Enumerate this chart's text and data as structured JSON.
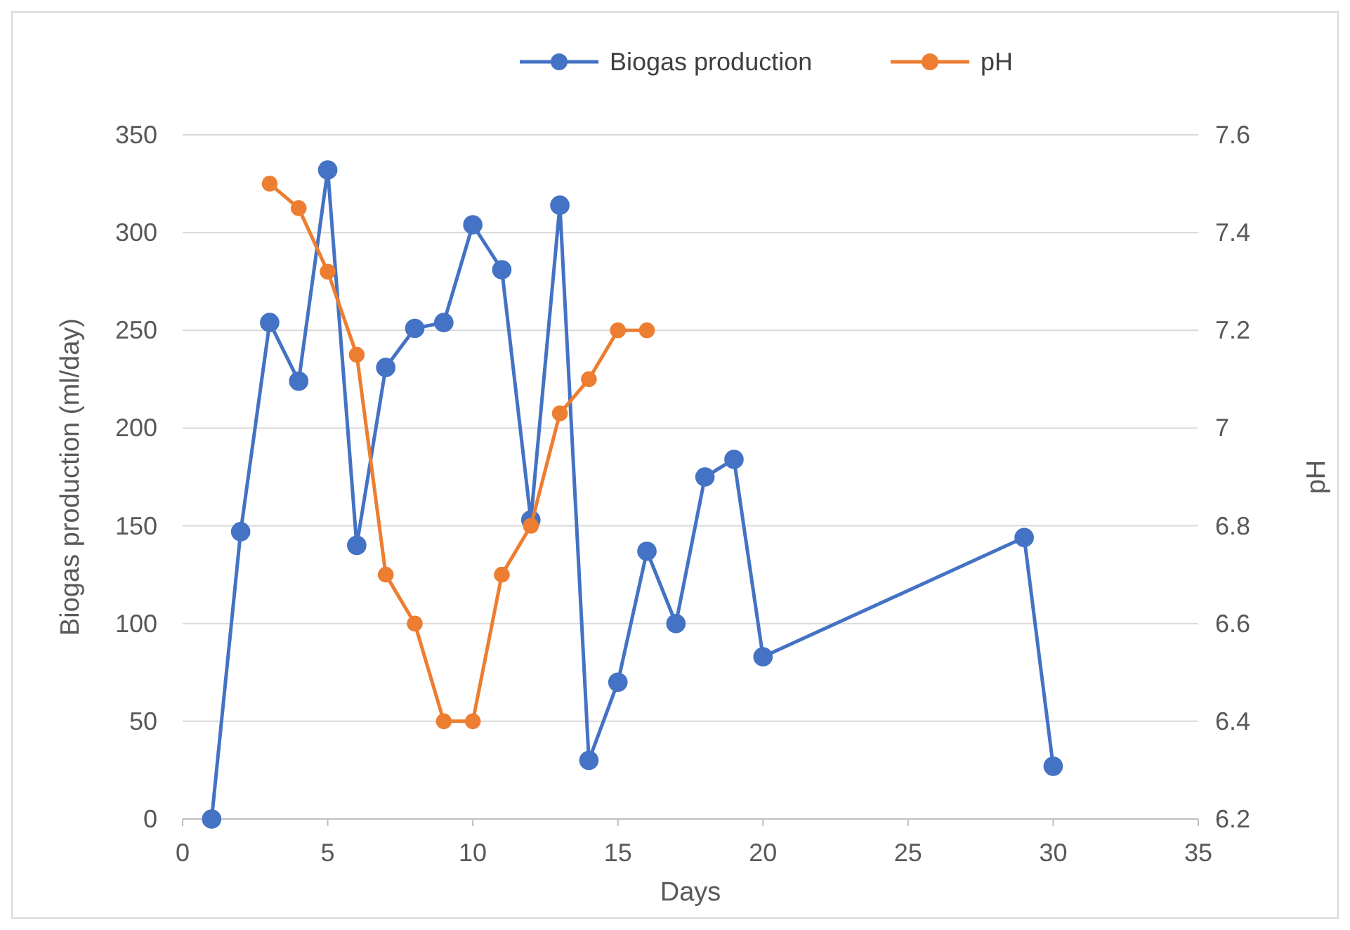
{
  "chart_data": {
    "type": "line",
    "xlabel": "Days",
    "ylabel": "Biogas production (ml/day)",
    "y2label": "pH",
    "xlim": [
      0,
      35
    ],
    "xticks": [
      0,
      5,
      10,
      15,
      20,
      25,
      30,
      35
    ],
    "ylim": [
      0,
      350
    ],
    "yticks": [
      0,
      50,
      100,
      150,
      200,
      250,
      300,
      350
    ],
    "y2lim": [
      6.2,
      7.6
    ],
    "y2ticks": [
      6.2,
      6.4,
      6.6,
      6.8,
      7,
      7.2,
      7.4,
      7.6
    ],
    "grid": "y",
    "legend": "top",
    "marker": "circle",
    "series": [
      {
        "name": "Biogas production",
        "color": "#4472c4",
        "x": [
          1,
          2,
          3,
          4,
          5,
          6,
          7,
          8,
          9,
          10,
          11,
          12,
          13,
          14,
          15,
          16,
          17,
          18,
          19,
          20,
          29,
          30
        ],
        "values": [
          0,
          147,
          254,
          224,
          332,
          140,
          231,
          251,
          254,
          304,
          281,
          153,
          314,
          30,
          70,
          137,
          100,
          175,
          184,
          83,
          144,
          27
        ]
      },
      {
        "name": "pH",
        "color": "#ed7d31",
        "axis": "y2",
        "x": [
          3,
          4,
          5,
          6,
          7,
          8,
          9,
          10,
          11,
          12,
          13,
          14,
          15,
          16
        ],
        "values": [
          7.5,
          7.45,
          7.32,
          7.15,
          6.7,
          6.6,
          6.4,
          6.4,
          6.7,
          6.8,
          7.03,
          7.1,
          7.2,
          7.2
        ]
      }
    ]
  }
}
